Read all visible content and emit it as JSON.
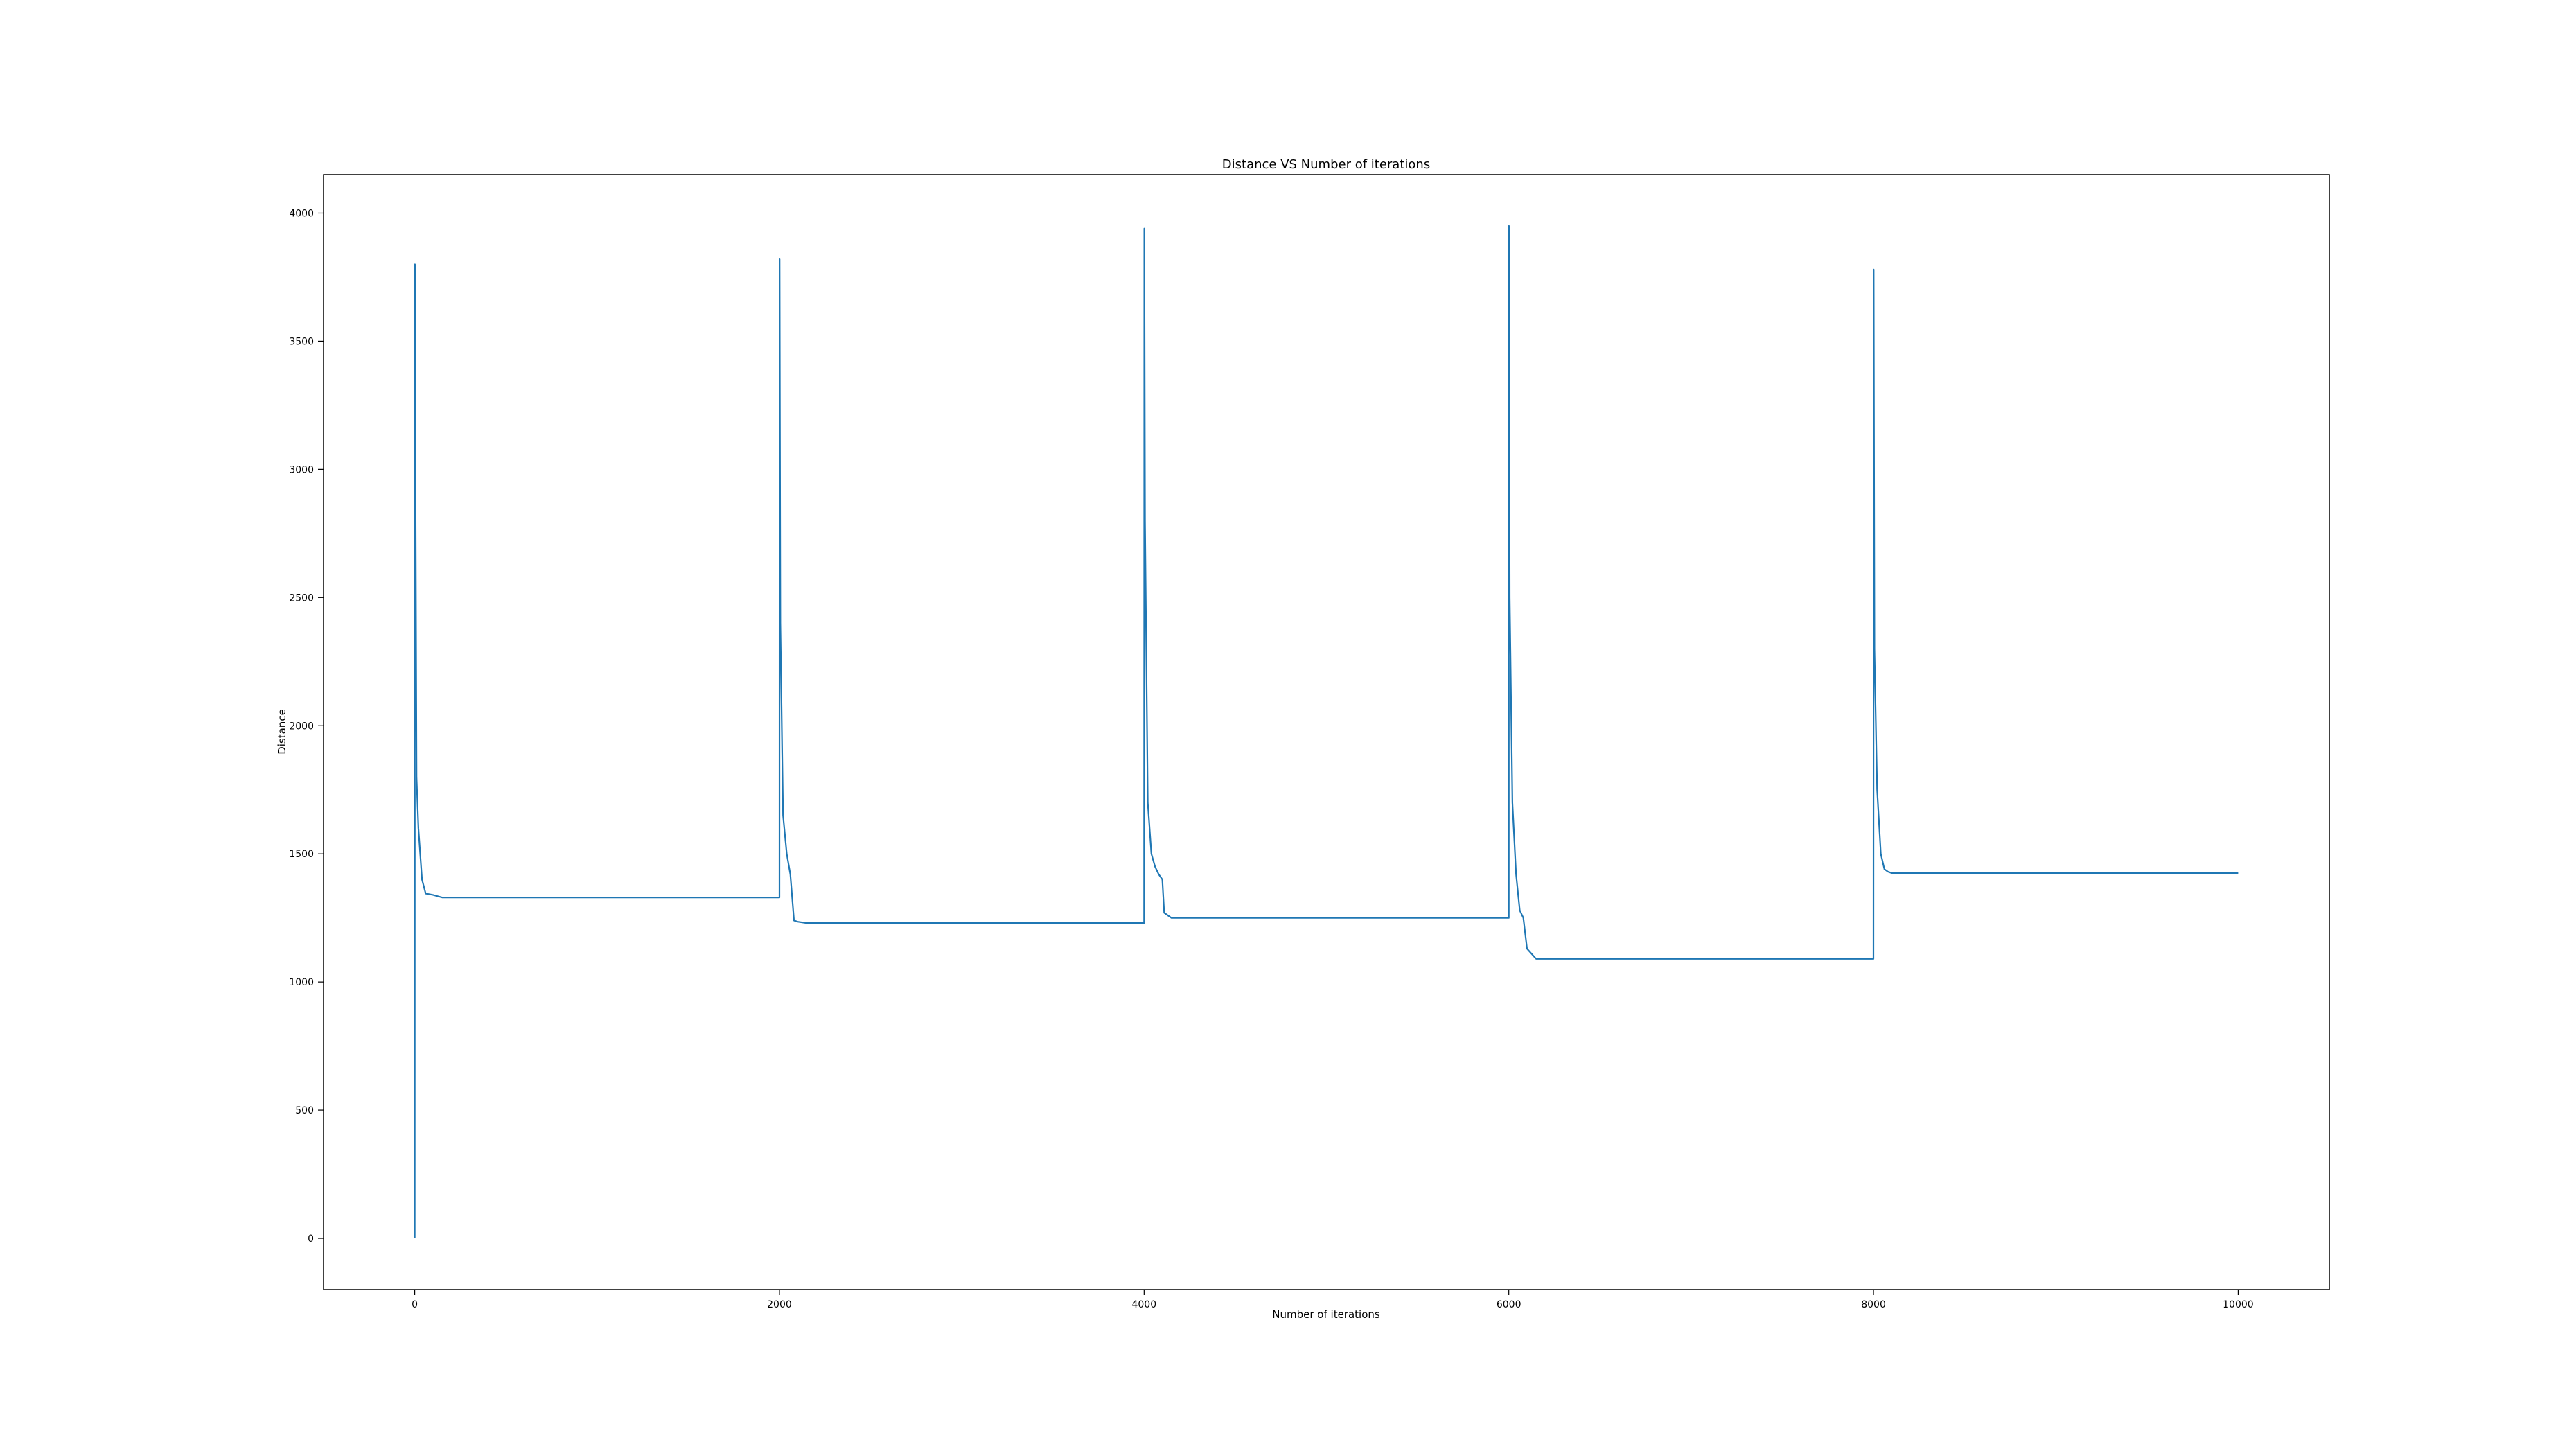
{
  "chart_data": {
    "type": "line",
    "title": "Distance VS Number of iterations",
    "xlabel": "Number of iterations",
    "ylabel": "Distance",
    "xlim": [
      -500,
      10500
    ],
    "ylim": [
      -200,
      4150
    ],
    "x_ticks": [
      0,
      2000,
      4000,
      6000,
      8000,
      10000
    ],
    "y_ticks": [
      0,
      500,
      1000,
      1500,
      2000,
      2500,
      3000,
      3500,
      4000
    ],
    "grid": false,
    "legend": "none",
    "line_color": "#1f77b4",
    "series": [
      {
        "x": [
          0,
          1,
          5,
          10,
          20,
          40,
          60,
          100,
          150,
          2000,
          2001,
          2005,
          2020,
          2040,
          2060,
          2080,
          2100,
          2150,
          4000,
          4001,
          4005,
          4020,
          4040,
          4060,
          4080,
          4100,
          4110,
          4150,
          6000,
          6001,
          6005,
          6020,
          6040,
          6060,
          6080,
          6100,
          6150,
          8000,
          8001,
          8005,
          8020,
          8040,
          8060,
          8080,
          8100,
          8150,
          10000
        ],
        "y": [
          0,
          3800,
          2800,
          1800,
          1600,
          1400,
          1345,
          1340,
          1330,
          1330,
          3820,
          2400,
          1650,
          1500,
          1420,
          1240,
          1235,
          1230,
          1230,
          3940,
          2800,
          1700,
          1500,
          1450,
          1420,
          1400,
          1270,
          1250,
          1250,
          3950,
          2500,
          1700,
          1420,
          1280,
          1250,
          1130,
          1090,
          1090,
          3780,
          2300,
          1750,
          1500,
          1440,
          1430,
          1425,
          1425,
          1425
        ]
      }
    ]
  }
}
